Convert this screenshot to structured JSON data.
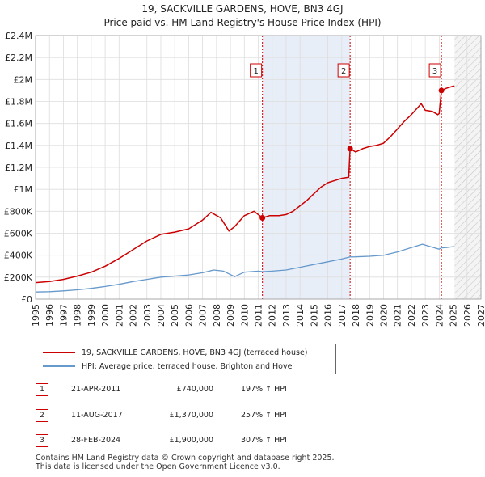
{
  "title": "19, SACKVILLE GARDENS, HOVE, BN3 4GJ",
  "subtitle": "Price paid vs. HM Land Registry's House Price Index (HPI)",
  "legend": {
    "property_label": "19, SACKVILLE GARDENS, HOVE, BN3 4GJ (terraced house)",
    "hpi_label": "HPI: Average price, terraced house, Brighton and Hove"
  },
  "transactions": [
    {
      "num": "1",
      "date": "21-APR-2011",
      "price": "£740,000",
      "hpi": "197% ↑ HPI"
    },
    {
      "num": "2",
      "date": "11-AUG-2017",
      "price": "£1,370,000",
      "hpi": "257% ↑ HPI"
    },
    {
      "num": "3",
      "date": "28-FEB-2024",
      "price": "£1,900,000",
      "hpi": "307% ↑ HPI"
    }
  ],
  "footer": {
    "line1": "Contains HM Land Registry data © Crown copyright and database right 2025.",
    "line2": "This data is licensed under the Open Government Licence v3.0."
  },
  "colors": {
    "property": "#cc0000",
    "hpi": "#6699cc",
    "highlight": "#e8eef8",
    "grid": "#dddddd"
  },
  "chart_data": {
    "type": "line",
    "xlim": [
      1995,
      2027
    ],
    "ylim": [
      0,
      2400000
    ],
    "x_ticks": [
      1995,
      1996,
      1997,
      1998,
      1999,
      2000,
      2001,
      2002,
      2003,
      2004,
      2005,
      2006,
      2007,
      2008,
      2009,
      2010,
      2011,
      2012,
      2013,
      2014,
      2015,
      2016,
      2017,
      2018,
      2019,
      2020,
      2021,
      2022,
      2023,
      2024,
      2025,
      2026,
      2027
    ],
    "x_tick_labels": [
      "1995",
      "1996",
      "1997",
      "1998",
      "1999",
      "2000",
      "2001",
      "2002",
      "2003",
      "2004",
      "2005",
      "2006",
      "2007",
      "2008",
      "2009",
      "2010",
      "2011",
      "2012",
      "2013",
      "2014",
      "2015",
      "2016",
      "2017",
      "2018",
      "2019",
      "2020",
      "2021",
      "2022",
      "2023",
      "2024",
      "2025",
      "2026",
      "2027"
    ],
    "y_ticks": [
      0,
      200000,
      400000,
      600000,
      800000,
      1000000,
      1200000,
      1400000,
      1600000,
      1800000,
      2000000,
      2200000,
      2400000
    ],
    "y_tick_labels": [
      "£0",
      "£200K",
      "£400K",
      "£600K",
      "£800K",
      "£1M",
      "£1.2M",
      "£1.4M",
      "£1.6M",
      "£1.8M",
      "£2M",
      "£2.2M",
      "£2.4M"
    ],
    "highlight_range": [
      2011.3,
      2017.6
    ],
    "forecast_from": 2025.1,
    "series": [
      {
        "name": "19, SACKVILLE GARDENS, HOVE, BN3 4GJ (terraced house)",
        "x": [
          1995.0,
          1996.0,
          1997.0,
          1998.0,
          1999.0,
          2000.0,
          2001.0,
          2002.0,
          2003.0,
          2004.0,
          2005.0,
          2006.0,
          2007.0,
          2007.6,
          2008.3,
          2008.9,
          2009.3,
          2010.0,
          2010.7,
          2011.3,
          2011.8,
          2012.5,
          2013.0,
          2013.5,
          2014.0,
          2014.5,
          2015.0,
          2015.5,
          2016.0,
          2016.5,
          2017.0,
          2017.5,
          2017.6,
          2018.0,
          2018.5,
          2019.0,
          2019.5,
          2020.0,
          2020.5,
          2021.0,
          2021.5,
          2022.0,
          2022.5,
          2022.7,
          2023.0,
          2023.5,
          2023.9,
          2024.0,
          2024.16,
          2024.5,
          2025.0,
          2025.1
        ],
        "values": [
          150000,
          160000,
          180000,
          210000,
          245000,
          300000,
          370000,
          450000,
          530000,
          590000,
          610000,
          640000,
          720000,
          790000,
          740000,
          620000,
          660000,
          760000,
          800000,
          740000,
          760000,
          760000,
          770000,
          800000,
          850000,
          900000,
          960000,
          1020000,
          1060000,
          1080000,
          1100000,
          1110000,
          1370000,
          1340000,
          1370000,
          1390000,
          1400000,
          1420000,
          1480000,
          1550000,
          1620000,
          1680000,
          1750000,
          1780000,
          1720000,
          1710000,
          1680000,
          1690000,
          1900000,
          1920000,
          1940000,
          1940000
        ]
      },
      {
        "name": "HPI: Average price, terraced house, Brighton and Hove",
        "x": [
          1995.0,
          1996.0,
          1997.0,
          1998.0,
          1999.0,
          2000.0,
          2001.0,
          2002.0,
          2003.0,
          2004.0,
          2005.0,
          2006.0,
          2007.0,
          2007.8,
          2008.5,
          2009.3,
          2010.0,
          2011.0,
          2011.3,
          2012.0,
          2013.0,
          2014.0,
          2015.0,
          2016.0,
          2017.0,
          2017.6,
          2018.0,
          2019.0,
          2020.0,
          2021.0,
          2022.0,
          2022.8,
          2023.3,
          2024.0,
          2024.16,
          2024.5,
          2025.0,
          2025.1
        ],
        "values": [
          65000,
          68000,
          75000,
          85000,
          98000,
          115000,
          135000,
          160000,
          180000,
          200000,
          210000,
          220000,
          240000,
          265000,
          255000,
          205000,
          245000,
          255000,
          250000,
          255000,
          265000,
          290000,
          315000,
          340000,
          365000,
          384000,
          385000,
          390000,
          400000,
          430000,
          470000,
          500000,
          480000,
          455000,
          467000,
          470000,
          478000,
          478000
        ]
      }
    ],
    "markers": [
      {
        "label": "1",
        "x": 2011.3,
        "y": 740000
      },
      {
        "label": "2",
        "x": 2017.6,
        "y": 1370000
      },
      {
        "label": "3",
        "x": 2024.16,
        "y": 1900000
      }
    ]
  }
}
